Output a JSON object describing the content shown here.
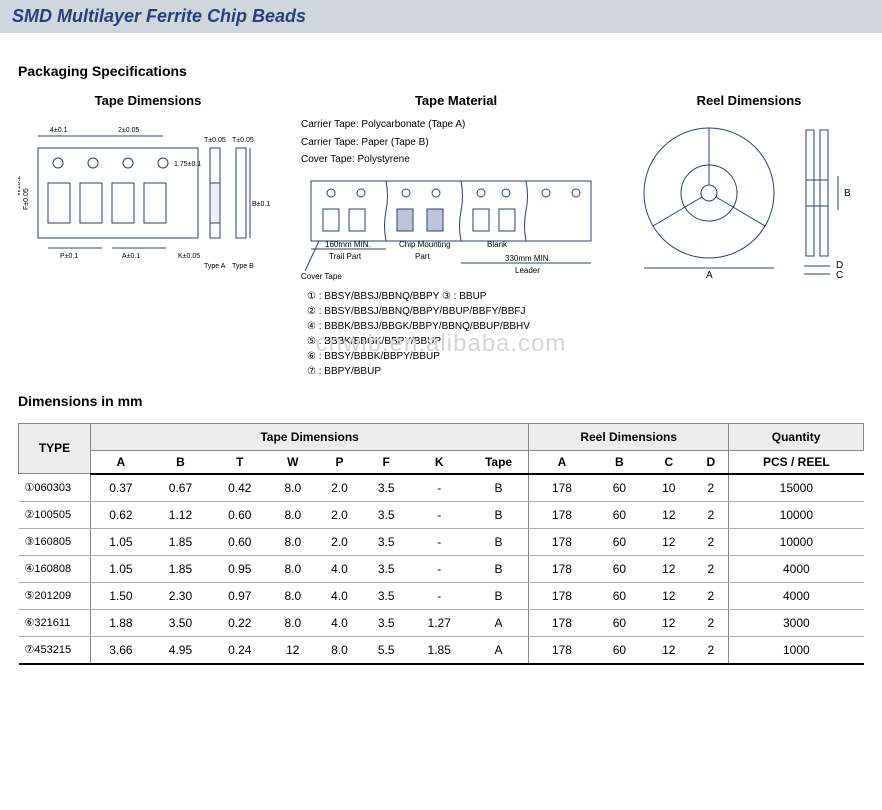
{
  "colors": {
    "title_bg": "#d0d6de",
    "title_text": "#2a3f7a",
    "diagram_stroke": "#2a3f7a",
    "table_header_bg": "#ededed",
    "border": "#888888"
  },
  "title": "SMD Multilayer Ferrite Chip Beads",
  "section_packaging": "Packaging Specifications",
  "section_dimensions": "Dimensions in mm",
  "diagrams": {
    "tape_dim_label": "Tape Dimensions",
    "tape_mat_label": "Tape Material",
    "reel_dim_label": "Reel Dimensions",
    "tape_dim_callouts": {
      "d1": "4±0.1",
      "d2": "2±0.05",
      "d3": "T±0.05",
      "d4": "T±0.05",
      "d5": "1.75±0.1",
      "d6": "W±0.2",
      "d7": "F±0.05",
      "d8": "B±0.1",
      "d9": "P±0.1",
      "d10": "A±0.1",
      "d11": "K±0.05",
      "typeA": "Type A",
      "typeB": "Type B"
    },
    "tape_material": {
      "line1": "Carrier Tape: Polycarbonate (Tape A)",
      "line2": "Carrier Tape: Paper (Tape B)",
      "line3": "Cover Tape: Polystyrene",
      "trail": "Trail Part",
      "chip": "Chip Mounting Part",
      "blank": "Blank",
      "leader": "Leader",
      "trail_len": "160mm MIN.",
      "leader_len": "330mm MIN.",
      "cover": "Cover Tape"
    },
    "reel": {
      "A": "A",
      "B": "B",
      "C": "C",
      "D": "D"
    },
    "codes": {
      "c1": "① : BBSY/BBSJ/BBNQ/BBPY   ③ : BBUP",
      "c2": "② : BBSY/BBSJ/BBNQ/BBPY/BBUP/BBFY/BBFJ",
      "c3": "④ : BBBK/BBSJ/BBGK/BBPY/BBNQ/BBUP/BBHV",
      "c4": "⑤ : BBBK/BBGK/BBPY/BBUP",
      "c5": "⑥ : BBSY/BBBK/BBPY/BBUP",
      "c6": "⑦ : BBPY/BBUP"
    }
  },
  "table": {
    "header_groups": {
      "type": "TYPE",
      "tape": "Tape Dimensions",
      "reel": "Reel Dimensions",
      "qty": "Quantity"
    },
    "columns": [
      "A",
      "B",
      "T",
      "W",
      "P",
      "F",
      "K",
      "Tape",
      "A",
      "B",
      "C",
      "D",
      "PCS / REEL"
    ],
    "rows": [
      {
        "type": "①060303",
        "vals": [
          "0.37",
          "0.67",
          "0.42",
          "8.0",
          "2.0",
          "3.5",
          "-",
          "B",
          "178",
          "60",
          "10",
          "2",
          "15000"
        ]
      },
      {
        "type": "②100505",
        "vals": [
          "0.62",
          "1.12",
          "0.60",
          "8.0",
          "2.0",
          "3.5",
          "-",
          "B",
          "178",
          "60",
          "12",
          "2",
          "10000"
        ]
      },
      {
        "type": "③160805",
        "vals": [
          "1.05",
          "1.85",
          "0.60",
          "8.0",
          "2.0",
          "3.5",
          "-",
          "B",
          "178",
          "60",
          "12",
          "2",
          "10000"
        ]
      },
      {
        "type": "④160808",
        "vals": [
          "1.05",
          "1.85",
          "0.95",
          "8.0",
          "4.0",
          "3.5",
          "-",
          "B",
          "178",
          "60",
          "12",
          "2",
          "4000"
        ]
      },
      {
        "type": "⑤201209",
        "vals": [
          "1.50",
          "2.30",
          "0.97",
          "8.0",
          "4.0",
          "3.5",
          "-",
          "B",
          "178",
          "60",
          "12",
          "2",
          "4000"
        ]
      },
      {
        "type": "⑥321611",
        "vals": [
          "1.88",
          "3.50",
          "0.22",
          "8.0",
          "4.0",
          "3.5",
          "1.27",
          "A",
          "178",
          "60",
          "12",
          "2",
          "3000"
        ]
      },
      {
        "type": "⑦453215",
        "vals": [
          "3.66",
          "4.95",
          "0.24",
          "12",
          "8.0",
          "5.5",
          "1.85",
          "A",
          "178",
          "60",
          "12",
          "2",
          "1000"
        ]
      }
    ]
  },
  "watermark": "cnwib.en.alibaba.com"
}
